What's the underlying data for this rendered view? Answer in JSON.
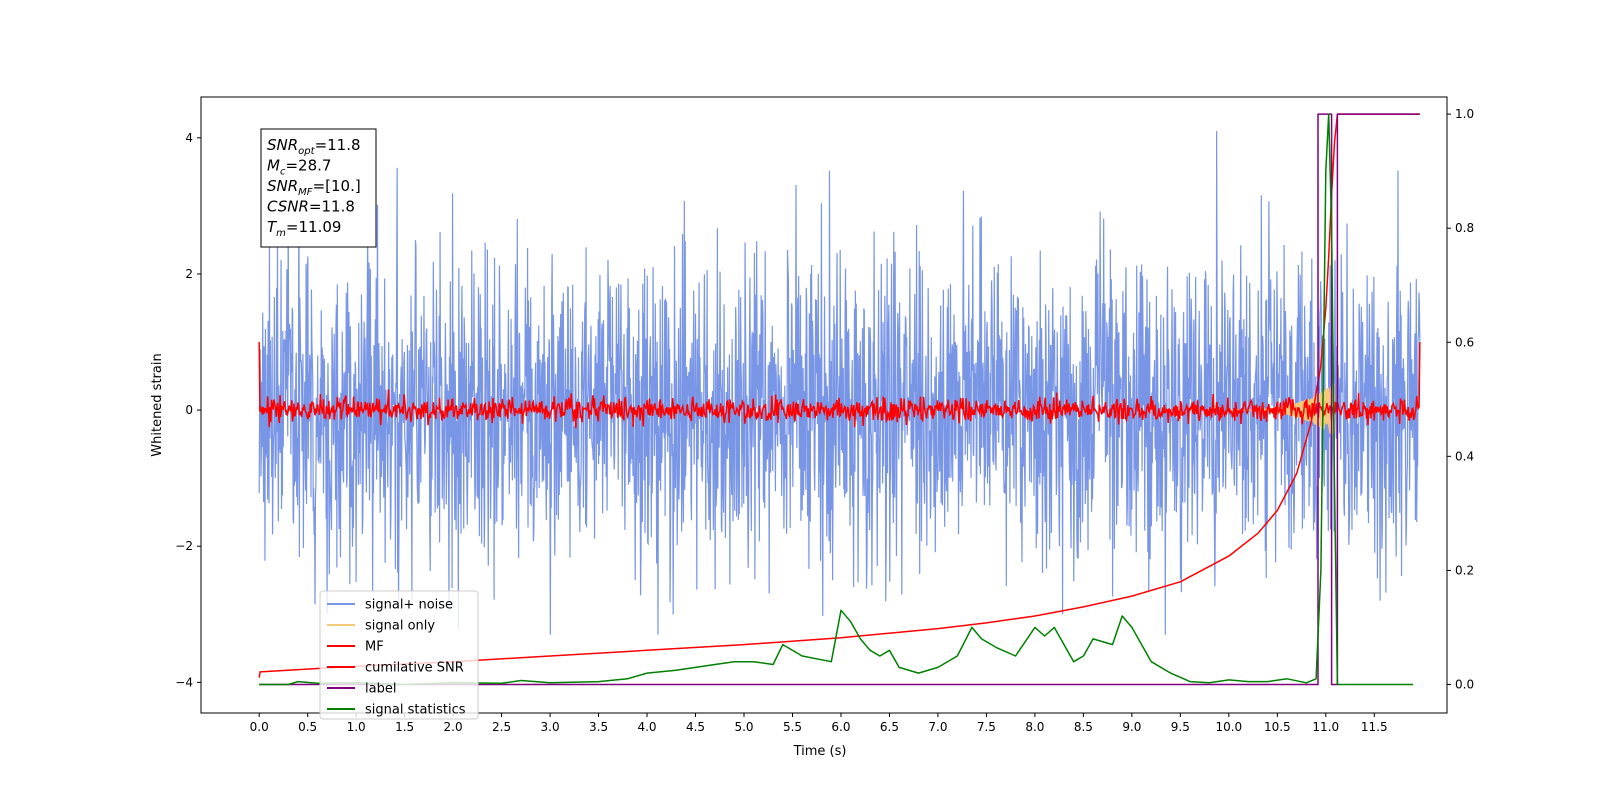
{
  "chart_data": {
    "type": "line",
    "xlabel": "Time (s)",
    "ylabel": "Whitened strain",
    "xlim": [
      -0.6,
      12.25
    ],
    "ylim": [
      -4.45,
      4.6
    ],
    "y2lim": [
      -0.05,
      1.03
    ],
    "x_ticks": [
      0.0,
      0.5,
      1.0,
      1.5,
      2.0,
      2.5,
      3.0,
      3.5,
      4.0,
      4.5,
      5.0,
      5.5,
      6.0,
      6.5,
      7.0,
      7.5,
      8.0,
      8.5,
      9.0,
      9.5,
      10.0,
      10.5,
      11.0,
      11.5
    ],
    "x_tick_labels": [
      "0.0",
      "0.5",
      "1.0",
      "1.5",
      "2.0",
      "2.5",
      "3.0",
      "3.5",
      "4.0",
      "4.5",
      "5.0",
      "5.5",
      "6.0",
      "6.5",
      "7.0",
      "7.5",
      "8.0",
      "8.5",
      "9.0",
      "9.5",
      "10.0",
      "10.5",
      "11.0",
      "11.5"
    ],
    "y_ticks": [
      -4,
      -2,
      0,
      2,
      4
    ],
    "y_tick_labels": [
      "−4",
      "−2",
      "0",
      "2",
      "4"
    ],
    "y2_ticks": [
      0.0,
      0.2,
      0.4,
      0.6,
      0.8,
      1.0
    ],
    "y2_tick_labels": [
      "0.0",
      "0.2",
      "0.4",
      "0.6",
      "0.8",
      "1.0"
    ],
    "grid": false,
    "legend_position": "lower-left",
    "annotation": [
      {
        "base": "SNR",
        "sub": "opt",
        "value": "=11.8"
      },
      {
        "base": "M",
        "sub": "c",
        "value": "=28.7"
      },
      {
        "base": "SNR",
        "sub": "MF",
        "value": "=[10.]"
      },
      {
        "base": "CSNR",
        "sub": "",
        "value": "=11.8"
      },
      {
        "base": "T",
        "sub": "m",
        "value": "=11.09"
      }
    ],
    "series": [
      {
        "name": "signal+ noise",
        "color": "#7895e6",
        "axis": "left",
        "kind": "noise",
        "x_range": [
          0.0,
          11.97
        ],
        "amplitude_std": 1.0
      },
      {
        "name": "signal only",
        "color": "#f4c97a",
        "axis": "left",
        "kind": "chirp",
        "x_range": [
          10.0,
          11.09
        ],
        "peak_amplitude": 0.4
      },
      {
        "name": "MF",
        "color": "#ff0000",
        "axis": "left",
        "kind": "noise",
        "x_range": [
          0.0,
          11.97
        ],
        "amplitude_std": 0.09,
        "endpoints": [
          1.0,
          1.0
        ]
      },
      {
        "name": "cumilative SNR",
        "color": "#ff0000",
        "axis": "right",
        "x": [
          0.0,
          0.01,
          1.0,
          2.0,
          3.0,
          4.0,
          5.0,
          6.0,
          7.0,
          7.5,
          8.0,
          8.5,
          9.0,
          9.5,
          10.0,
          10.3,
          10.5,
          10.7,
          10.85,
          10.95,
          11.0,
          11.03,
          11.06,
          11.09,
          11.12,
          11.97
        ],
        "values": [
          0.012,
          0.022,
          0.032,
          0.04,
          0.05,
          0.06,
          0.07,
          0.082,
          0.098,
          0.108,
          0.12,
          0.136,
          0.155,
          0.18,
          0.225,
          0.265,
          0.305,
          0.37,
          0.46,
          0.56,
          0.66,
          0.75,
          0.86,
          0.95,
          1.0,
          1.0
        ]
      },
      {
        "name": "label",
        "color": "#800080",
        "axis": "right",
        "x": [
          0.0,
          10.92,
          10.92,
          11.06,
          11.06,
          11.12,
          11.12,
          11.97
        ],
        "values": [
          0.0,
          0.0,
          1.0,
          1.0,
          0.0,
          0.0,
          1.0,
          1.0
        ]
      },
      {
        "name": "signal statistics",
        "color": "#008000",
        "axis": "right",
        "x": [
          0.0,
          0.3,
          0.4,
          0.6,
          1.0,
          1.5,
          2.0,
          2.5,
          2.7,
          3.0,
          3.5,
          3.8,
          4.0,
          4.3,
          4.5,
          4.7,
          4.9,
          5.1,
          5.3,
          5.4,
          5.6,
          5.9,
          6.0,
          6.1,
          6.2,
          6.3,
          6.4,
          6.5,
          6.6,
          6.8,
          7.0,
          7.2,
          7.35,
          7.45,
          7.6,
          7.8,
          8.0,
          8.1,
          8.2,
          8.3,
          8.4,
          8.5,
          8.6,
          8.8,
          8.9,
          9.0,
          9.1,
          9.2,
          9.4,
          9.6,
          9.8,
          10.0,
          10.2,
          10.4,
          10.6,
          10.8,
          10.9,
          10.95,
          11.0,
          11.03,
          11.06,
          11.09,
          11.12,
          11.2,
          11.5,
          11.9
        ],
        "values": [
          0.0,
          0.0,
          0.005,
          0.002,
          0.003,
          0.0,
          0.003,
          0.002,
          0.007,
          0.003,
          0.005,
          0.01,
          0.02,
          0.025,
          0.03,
          0.035,
          0.04,
          0.04,
          0.035,
          0.07,
          0.05,
          0.04,
          0.13,
          0.11,
          0.08,
          0.06,
          0.05,
          0.06,
          0.03,
          0.02,
          0.03,
          0.05,
          0.1,
          0.08,
          0.065,
          0.05,
          0.1,
          0.085,
          0.1,
          0.07,
          0.04,
          0.05,
          0.08,
          0.07,
          0.12,
          0.1,
          0.07,
          0.04,
          0.02,
          0.005,
          0.003,
          0.008,
          0.005,
          0.005,
          0.01,
          0.003,
          0.01,
          0.2,
          0.9,
          1.0,
          0.8,
          0.35,
          0.0,
          0.0,
          0.0,
          0.0
        ]
      }
    ]
  }
}
